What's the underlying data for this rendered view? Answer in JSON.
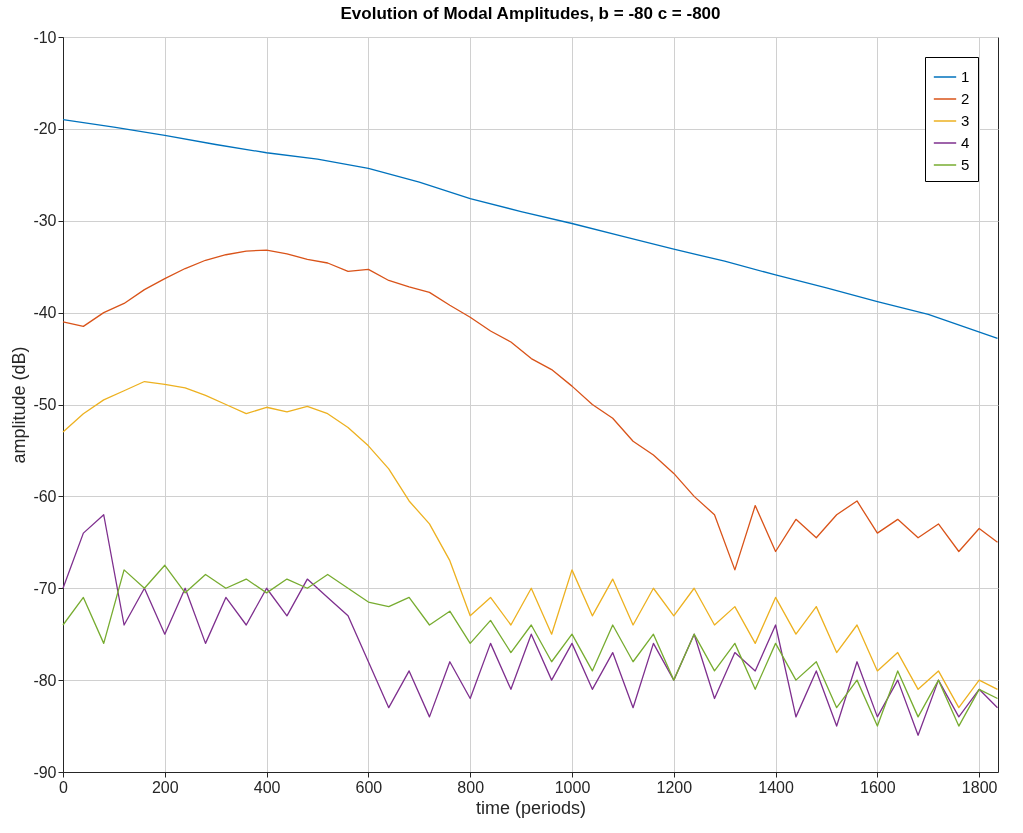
{
  "chart_data": {
    "type": "line",
    "title": "Evolution of Modal Amplitudes, b = -80 c = -800",
    "xlabel": "time (periods)",
    "ylabel": "amplitude (dB)",
    "xlim": [
      0,
      1837
    ],
    "xticks": [
      0,
      200,
      400,
      600,
      800,
      1000,
      1200,
      1400,
      1600,
      1800
    ],
    "ylim": [
      -90,
      -10
    ],
    "yticks": [
      -90,
      -80,
      -70,
      -60,
      -50,
      -40,
      -30,
      -20,
      -10
    ],
    "grid": true,
    "legend": "top right",
    "series": [
      {
        "name": "1",
        "color": "#0072bd",
        "x": [
          0,
          100,
          200,
          300,
          400,
          500,
          600,
          700,
          800,
          900,
          1000,
          1100,
          1200,
          1300,
          1400,
          1500,
          1600,
          1700,
          1836
        ],
        "values": [
          -19,
          -19.8,
          -20.7,
          -21.7,
          -22.6,
          -23.3,
          -24.3,
          -25.8,
          -27.6,
          -29,
          -30.3,
          -31.7,
          -33.1,
          -34.4,
          -35.9,
          -37.3,
          -38.8,
          -40.2,
          -42.8
        ]
      },
      {
        "name": "2",
        "color": "#d95319",
        "x": [
          0,
          40,
          80,
          120,
          160,
          200,
          240,
          280,
          320,
          360,
          400,
          440,
          480,
          520,
          560,
          600,
          640,
          680,
          720,
          760,
          800,
          840,
          880,
          920,
          960,
          1000,
          1040,
          1080,
          1120,
          1160,
          1200,
          1240,
          1280,
          1320,
          1360,
          1400,
          1440,
          1480,
          1520,
          1560,
          1600,
          1640,
          1680,
          1720,
          1760,
          1800,
          1836
        ],
        "values": [
          -41,
          -41.5,
          -40,
          -39,
          -37.5,
          -36.3,
          -35.2,
          -34.3,
          -33.7,
          -33.3,
          -33.2,
          -33.6,
          -34.2,
          -34.6,
          -35.5,
          -35.3,
          -36.5,
          -37.2,
          -37.8,
          -39.2,
          -40.5,
          -42,
          -43.2,
          -45,
          -46.2,
          -48,
          -50,
          -51.5,
          -54,
          -55.5,
          -57.5,
          -60,
          -62,
          -68,
          -61,
          -66,
          -62.5,
          -64.5,
          -62,
          -60.5,
          -64,
          -62.5,
          -64.5,
          -63,
          -66,
          -63.5,
          -65
        ]
      },
      {
        "name": "3",
        "color": "#edb120",
        "x": [
          0,
          40,
          80,
          120,
          160,
          200,
          240,
          280,
          320,
          360,
          400,
          440,
          480,
          520,
          560,
          600,
          640,
          680,
          720,
          760,
          800,
          840,
          880,
          920,
          960,
          1000,
          1040,
          1080,
          1120,
          1160,
          1200,
          1240,
          1280,
          1320,
          1360,
          1400,
          1440,
          1480,
          1520,
          1560,
          1600,
          1640,
          1680,
          1720,
          1760,
          1800,
          1836
        ],
        "values": [
          -53,
          -51,
          -49.5,
          -48.5,
          -47.5,
          -47.8,
          -48.2,
          -49,
          -50,
          -51,
          -50.3,
          -50.8,
          -50.2,
          -51,
          -52.5,
          -54.5,
          -57,
          -60.5,
          -63,
          -67,
          -73,
          -71,
          -74,
          -70,
          -75,
          -68,
          -73,
          -69,
          -74,
          -70,
          -73,
          -70,
          -74,
          -72,
          -76,
          -71,
          -75,
          -72,
          -77,
          -74,
          -79,
          -77,
          -81,
          -79,
          -83,
          -80,
          -81
        ]
      },
      {
        "name": "4",
        "color": "#7e2f8e",
        "x": [
          0,
          40,
          80,
          120,
          160,
          200,
          240,
          280,
          320,
          360,
          400,
          440,
          480,
          520,
          560,
          600,
          640,
          680,
          720,
          760,
          800,
          840,
          880,
          920,
          960,
          1000,
          1040,
          1080,
          1120,
          1160,
          1200,
          1240,
          1280,
          1320,
          1360,
          1400,
          1440,
          1480,
          1520,
          1560,
          1600,
          1640,
          1680,
          1720,
          1760,
          1800,
          1836
        ],
        "values": [
          -70,
          -64,
          -62,
          -74,
          -70,
          -75,
          -70,
          -76,
          -71,
          -74,
          -70,
          -73,
          -69,
          -71,
          -73,
          -78,
          -83,
          -79,
          -84,
          -78,
          -82,
          -76,
          -81,
          -75,
          -80,
          -76,
          -81,
          -77,
          -83,
          -76,
          -80,
          -75,
          -82,
          -77,
          -79,
          -74,
          -84,
          -79,
          -85,
          -78,
          -84,
          -80,
          -86,
          -80,
          -84,
          -81,
          -83
        ]
      },
      {
        "name": "5",
        "color": "#77ac30",
        "x": [
          0,
          40,
          80,
          120,
          160,
          200,
          240,
          280,
          320,
          360,
          400,
          440,
          480,
          520,
          560,
          600,
          640,
          680,
          720,
          760,
          800,
          840,
          880,
          920,
          960,
          1000,
          1040,
          1080,
          1120,
          1160,
          1200,
          1240,
          1280,
          1320,
          1360,
          1400,
          1440,
          1480,
          1520,
          1560,
          1600,
          1640,
          1680,
          1720,
          1760,
          1800,
          1836
        ],
        "values": [
          -74,
          -71,
          -76,
          -68,
          -70,
          -67.5,
          -70.5,
          -68.5,
          -70,
          -69,
          -70.5,
          -69,
          -70,
          -68.5,
          -70,
          -71.5,
          -72,
          -71,
          -74,
          -72.5,
          -76,
          -73.5,
          -77,
          -74,
          -78,
          -75,
          -79,
          -74,
          -78,
          -75,
          -80,
          -75,
          -79,
          -76,
          -81,
          -76,
          -80,
          -78,
          -83,
          -80,
          -85,
          -79,
          -84,
          -80,
          -85,
          -81,
          -82
        ]
      }
    ]
  }
}
